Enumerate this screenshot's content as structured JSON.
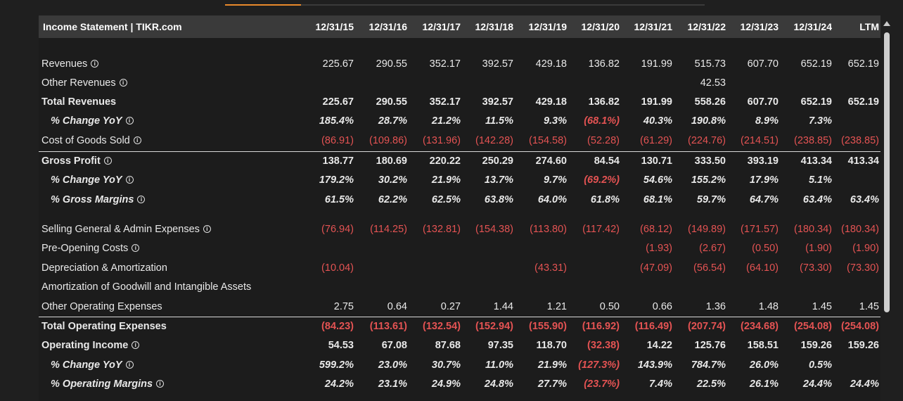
{
  "header": {
    "title": "Income Statement | TIKR.com",
    "columns": [
      "12/31/15",
      "12/31/16",
      "12/31/17",
      "12/31/18",
      "12/31/19",
      "12/31/20",
      "12/31/21",
      "12/31/22",
      "12/31/23",
      "12/31/24",
      "LTM"
    ]
  },
  "colors": {
    "negative": "#e45353",
    "accent": "#e8892b"
  },
  "rows": [
    {
      "label": "Revenues",
      "info": true,
      "style": "normal",
      "values": [
        "225.67",
        "290.55",
        "352.17",
        "392.57",
        "429.18",
        "136.82",
        "191.99",
        "515.73",
        "607.70",
        "652.19",
        "652.19"
      ]
    },
    {
      "label": "Other Revenues",
      "info": true,
      "style": "normal",
      "values": [
        "",
        "",
        "",
        "",
        "",
        "",
        "",
        "42.53",
        "",
        "",
        ""
      ]
    },
    {
      "label": "Total Revenues",
      "info": false,
      "style": "bold",
      "values": [
        "225.67",
        "290.55",
        "352.17",
        "392.57",
        "429.18",
        "136.82",
        "191.99",
        "558.26",
        "607.70",
        "652.19",
        "652.19"
      ]
    },
    {
      "label": "% Change YoY",
      "info": true,
      "style": "ital",
      "values": [
        "185.4%",
        "28.7%",
        "21.2%",
        "11.5%",
        "9.3%",
        "(68.1%)",
        "40.3%",
        "190.8%",
        "8.9%",
        "7.3%",
        ""
      ]
    },
    {
      "label": "Cost of Goods Sold",
      "info": true,
      "style": "normal",
      "values": [
        "(86.91)",
        "(109.86)",
        "(131.96)",
        "(142.28)",
        "(154.58)",
        "(52.28)",
        "(61.29)",
        "(224.76)",
        "(214.51)",
        "(238.85)",
        "(238.85)"
      ]
    },
    {
      "label": "Gross Profit",
      "info": true,
      "style": "bold",
      "values": [
        "138.77",
        "180.69",
        "220.22",
        "250.29",
        "274.60",
        "84.54",
        "130.71",
        "333.50",
        "393.19",
        "413.34",
        "413.34"
      ]
    },
    {
      "label": "% Change YoY",
      "info": true,
      "style": "ital",
      "values": [
        "179.2%",
        "30.2%",
        "21.9%",
        "13.7%",
        "9.7%",
        "(69.2%)",
        "54.6%",
        "155.2%",
        "17.9%",
        "5.1%",
        ""
      ]
    },
    {
      "label": "% Gross Margins",
      "info": true,
      "style": "ital",
      "values": [
        "61.5%",
        "62.2%",
        "62.5%",
        "63.8%",
        "64.0%",
        "61.8%",
        "68.1%",
        "59.7%",
        "64.7%",
        "63.4%",
        "63.4%"
      ]
    },
    {
      "label": "Selling General & Admin Expenses",
      "info": true,
      "style": "normal",
      "values": [
        "(76.94)",
        "(114.25)",
        "(132.81)",
        "(154.38)",
        "(113.80)",
        "(117.42)",
        "(68.12)",
        "(149.89)",
        "(171.57)",
        "(180.34)",
        "(180.34)"
      ]
    },
    {
      "label": "Pre-Opening Costs",
      "info": true,
      "style": "normal",
      "values": [
        "",
        "",
        "",
        "",
        "",
        "",
        "(1.93)",
        "(2.67)",
        "(0.50)",
        "(1.90)",
        "(1.90)"
      ]
    },
    {
      "label": "Depreciation & Amortization",
      "info": false,
      "style": "normal",
      "values": [
        "(10.04)",
        "",
        "",
        "",
        "(43.31)",
        "",
        "(47.09)",
        "(56.54)",
        "(64.10)",
        "(73.30)",
        "(73.30)"
      ]
    },
    {
      "label": "Amortization of Goodwill and Intangible Assets",
      "info": false,
      "style": "normal",
      "values": [
        "",
        "",
        "",
        "",
        "",
        "",
        "",
        "",
        "",
        "",
        ""
      ]
    },
    {
      "label": "Other Operating Expenses",
      "info": false,
      "style": "normal",
      "values": [
        "2.75",
        "0.64",
        "0.27",
        "1.44",
        "1.21",
        "0.50",
        "0.66",
        "1.36",
        "1.48",
        "1.45",
        "1.45"
      ]
    },
    {
      "label": "Total Operating Expenses",
      "info": false,
      "style": "bold",
      "values": [
        "(84.23)",
        "(113.61)",
        "(132.54)",
        "(152.94)",
        "(155.90)",
        "(116.92)",
        "(116.49)",
        "(207.74)",
        "(234.68)",
        "(254.08)",
        "(254.08)"
      ]
    },
    {
      "label": "Operating Income",
      "info": true,
      "style": "bold",
      "values": [
        "54.53",
        "67.08",
        "87.68",
        "97.35",
        "118.70",
        "(32.38)",
        "14.22",
        "125.76",
        "158.51",
        "159.26",
        "159.26"
      ]
    },
    {
      "label": "% Change YoY",
      "info": true,
      "style": "ital",
      "values": [
        "599.2%",
        "23.0%",
        "30.7%",
        "11.0%",
        "21.9%",
        "(127.3%)",
        "143.9%",
        "784.7%",
        "26.0%",
        "0.5%",
        ""
      ]
    },
    {
      "label": "% Operating Margins",
      "info": true,
      "style": "ital",
      "values": [
        "24.2%",
        "23.1%",
        "24.9%",
        "24.8%",
        "27.7%",
        "(23.7%)",
        "7.4%",
        "22.5%",
        "26.1%",
        "24.4%",
        "24.4%"
      ]
    }
  ]
}
